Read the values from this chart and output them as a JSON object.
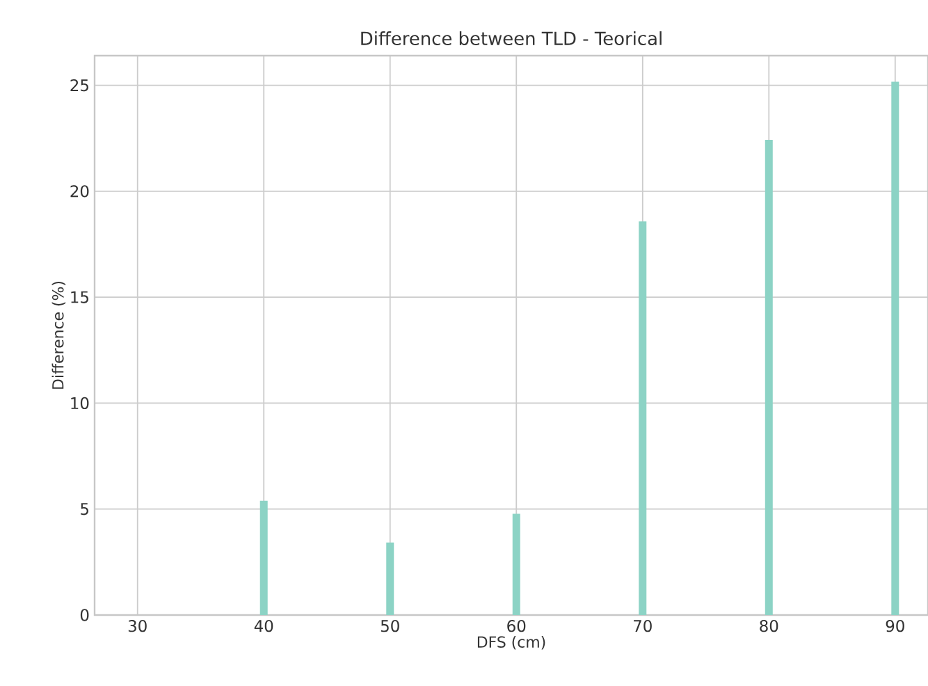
{
  "chart_data": {
    "type": "bar",
    "title": "Difference between TLD - Teorical",
    "xlabel": "DFS (cm)",
    "ylabel": "Difference (%)",
    "x": [
      40,
      50,
      60,
      70,
      80,
      90
    ],
    "values": [
      5.39,
      3.42,
      4.78,
      18.58,
      22.43,
      25.17
    ],
    "color": "#8cd3c5",
    "xlim": [
      26.6,
      92.6
    ],
    "ylim": [
      0,
      26.4
    ],
    "xticks": [
      30,
      40,
      50,
      60,
      70,
      80,
      90
    ],
    "yticks": [
      0,
      5,
      10,
      15,
      20,
      25
    ],
    "grid": true
  }
}
